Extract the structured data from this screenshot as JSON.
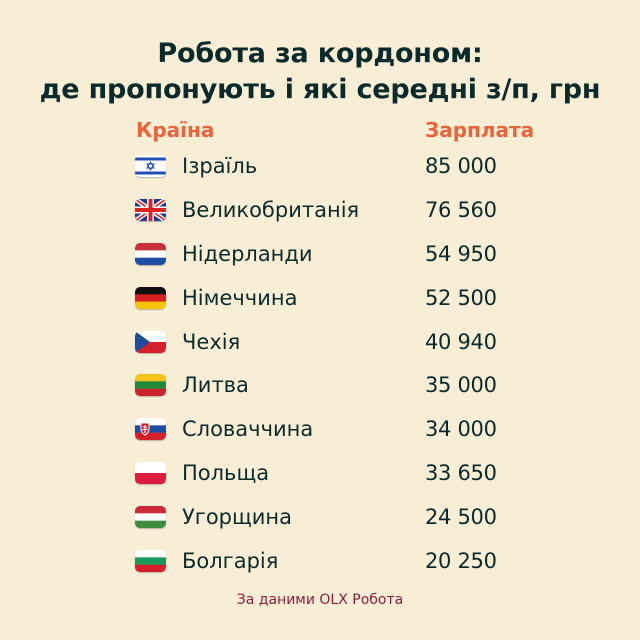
{
  "title_line1": "Робота за кордоном:",
  "title_line2": "де пропонують і які середні з/п, грн",
  "header": {
    "country": "Країна",
    "salary": "Зарплата"
  },
  "source": "За даними OLX Робота",
  "colors": {
    "background": "#f8eed6",
    "accent": "#e8643c",
    "source_text": "#8a1f3a",
    "text": "#0a2a2c"
  },
  "chart_data": {
    "type": "table",
    "columns": [
      "Країна",
      "Зарплата"
    ],
    "rows": [
      {
        "country": "Ізраїль",
        "salary": "85 000",
        "value": 85000,
        "flag": "israel-flag-icon"
      },
      {
        "country": "Великобританія",
        "salary": "76 560",
        "value": 76560,
        "flag": "uk-flag-icon"
      },
      {
        "country": "Нідерланди",
        "salary": "54 950",
        "value": 54950,
        "flag": "netherlands-flag-icon"
      },
      {
        "country": "Німеччина",
        "salary": "52 500",
        "value": 52500,
        "flag": "germany-flag-icon"
      },
      {
        "country": "Чехія",
        "salary": "40 940",
        "value": 40940,
        "flag": "czechia-flag-icon"
      },
      {
        "country": "Литва",
        "salary": "35 000",
        "value": 35000,
        "flag": "lithuania-flag-icon"
      },
      {
        "country": "Словаччина",
        "salary": "34 000",
        "value": 34000,
        "flag": "slovakia-flag-icon"
      },
      {
        "country": "Польща",
        "salary": "33 650",
        "value": 33650,
        "flag": "poland-flag-icon"
      },
      {
        "country": "Угорщина",
        "salary": "24 500",
        "value": 24500,
        "flag": "hungary-flag-icon"
      },
      {
        "country": "Болгарія",
        "salary": "20 250",
        "value": 20250,
        "flag": "bulgaria-flag-icon"
      }
    ]
  }
}
